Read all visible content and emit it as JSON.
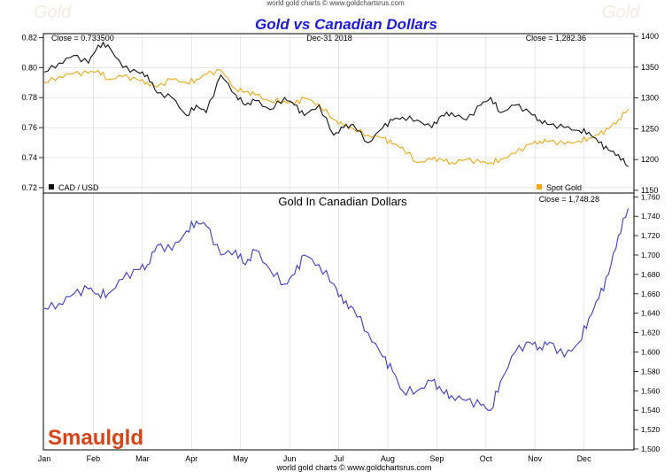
{
  "header": {
    "top_credit": "world gold charts © www.goldchartsrus.com",
    "title": "Gold vs Canadian Dollars",
    "date": "Dec-31  2018",
    "watermark": "Gold"
  },
  "top_panel": {
    "close_left": "Close = 0.733500",
    "close_right": "Close = 1,282.36",
    "legend_left": "CAD / USD",
    "legend_right": "Spot Gold"
  },
  "bottom_panel": {
    "title": "Gold In Canadian Dollars",
    "close": "Close = 1,748.28"
  },
  "logo": "Smaulgld",
  "footer": "world gold charts © www.goldchartsrus.com",
  "colors": {
    "title": "#1a1adb",
    "cad": "#111111",
    "gold": "#f0a818",
    "gold_cad": "#3a3ad0",
    "logo": "#d84418"
  },
  "chart_data": [
    {
      "type": "line",
      "title": "Gold vs Canadian Dollars",
      "x_labels": [
        "Jan",
        "Feb",
        "Mar",
        "Apr",
        "May",
        "Jun",
        "Jul",
        "Aug",
        "Sep",
        "Oct",
        "Nov",
        "Dec"
      ],
      "y_left_ticks": [
        "0.82",
        "0.80",
        "0.78",
        "0.76",
        "0.74",
        "0.72"
      ],
      "y_right_ticks": [
        "1400",
        "1350",
        "1300",
        "1250",
        "1200",
        "1150"
      ],
      "ylim_left": [
        0.717,
        0.822
      ],
      "ylim_right": [
        1147,
        1403
      ],
      "series": [
        {
          "name": "CAD / USD",
          "axis": "left",
          "x": [
            0,
            0.3,
            0.6,
            0.9,
            1.1,
            1.3,
            1.6,
            1.9,
            2.1,
            2.3,
            2.6,
            2.9,
            3.1,
            3.3,
            3.6,
            3.9,
            4.1,
            4.3,
            4.6,
            4.9,
            5.1,
            5.3,
            5.6,
            5.9,
            6.1,
            6.3,
            6.6,
            6.9,
            7.1,
            7.3,
            7.6,
            7.9,
            8.1,
            8.3,
            8.6,
            8.9,
            9.1,
            9.3,
            9.6,
            9.9,
            10.1,
            10.3,
            10.6,
            10.9,
            11.1,
            11.3,
            11.5,
            11.7,
            11.9
          ],
          "values": [
            0.797,
            0.803,
            0.808,
            0.803,
            0.815,
            0.815,
            0.8,
            0.797,
            0.795,
            0.783,
            0.78,
            0.768,
            0.775,
            0.77,
            0.795,
            0.782,
            0.775,
            0.778,
            0.772,
            0.78,
            0.775,
            0.768,
            0.775,
            0.755,
            0.76,
            0.762,
            0.75,
            0.76,
            0.765,
            0.767,
            0.765,
            0.76,
            0.768,
            0.77,
            0.765,
            0.775,
            0.78,
            0.77,
            0.775,
            0.77,
            0.765,
            0.762,
            0.76,
            0.758,
            0.757,
            0.75,
            0.745,
            0.742,
            0.734
          ]
        },
        {
          "name": "Spot Gold",
          "axis": "right",
          "x": [
            0,
            0.3,
            0.6,
            0.9,
            1.1,
            1.3,
            1.6,
            1.9,
            2.1,
            2.3,
            2.6,
            2.9,
            3.1,
            3.3,
            3.6,
            3.9,
            4.1,
            4.3,
            4.6,
            4.9,
            5.1,
            5.3,
            5.6,
            5.9,
            6.1,
            6.3,
            6.6,
            6.9,
            7.1,
            7.3,
            7.6,
            7.9,
            8.1,
            8.3,
            8.6,
            8.9,
            9.1,
            9.3,
            9.6,
            9.9,
            10.1,
            10.3,
            10.6,
            10.9,
            11.1,
            11.3,
            11.5,
            11.7,
            11.9
          ],
          "values": [
            1325,
            1335,
            1340,
            1340,
            1345,
            1330,
            1335,
            1330,
            1325,
            1318,
            1330,
            1325,
            1330,
            1338,
            1345,
            1315,
            1310,
            1305,
            1295,
            1295,
            1290,
            1300,
            1290,
            1265,
            1255,
            1250,
            1240,
            1235,
            1225,
            1220,
            1195,
            1200,
            1200,
            1195,
            1200,
            1195,
            1195,
            1200,
            1210,
            1225,
            1230,
            1230,
            1225,
            1230,
            1235,
            1240,
            1250,
            1265,
            1282
          ]
        }
      ]
    },
    {
      "type": "line",
      "title": "Gold In Canadian Dollars",
      "x_labels": [
        "Jan",
        "Feb",
        "Mar",
        "Apr",
        "May",
        "Jun",
        "Jul",
        "Aug",
        "Sep",
        "Oct",
        "Nov",
        "Dec"
      ],
      "y_right_ticks": [
        "1,760",
        "1,740",
        "1,720",
        "1,700",
        "1,680",
        "1,660",
        "1,640",
        "1,620",
        "1,600",
        "1,580",
        "1,560",
        "1,540",
        "1,520",
        "1,500"
      ],
      "ylim": [
        1500,
        1763
      ],
      "series": [
        {
          "name": "Gold in CAD",
          "x": [
            0,
            0.3,
            0.6,
            0.9,
            1.1,
            1.3,
            1.6,
            1.9,
            2.1,
            2.3,
            2.6,
            2.9,
            3.1,
            3.3,
            3.6,
            3.9,
            4.1,
            4.3,
            4.6,
            4.9,
            5.1,
            5.3,
            5.6,
            5.9,
            6.1,
            6.3,
            6.6,
            6.9,
            7.1,
            7.3,
            7.6,
            7.9,
            8.1,
            8.3,
            8.6,
            8.9,
            9.1,
            9.3,
            9.6,
            9.9,
            10.1,
            10.3,
            10.6,
            10.9,
            11.1,
            11.3,
            11.5,
            11.7,
            11.9
          ],
          "values": [
            1645,
            1650,
            1660,
            1665,
            1660,
            1660,
            1675,
            1685,
            1690,
            1710,
            1705,
            1725,
            1735,
            1730,
            1700,
            1705,
            1690,
            1705,
            1685,
            1670,
            1680,
            1700,
            1690,
            1670,
            1650,
            1645,
            1620,
            1595,
            1580,
            1560,
            1560,
            1570,
            1560,
            1555,
            1550,
            1545,
            1540,
            1570,
            1600,
            1610,
            1605,
            1610,
            1595,
            1610,
            1635,
            1655,
            1680,
            1720,
            1748
          ]
        }
      ]
    }
  ]
}
